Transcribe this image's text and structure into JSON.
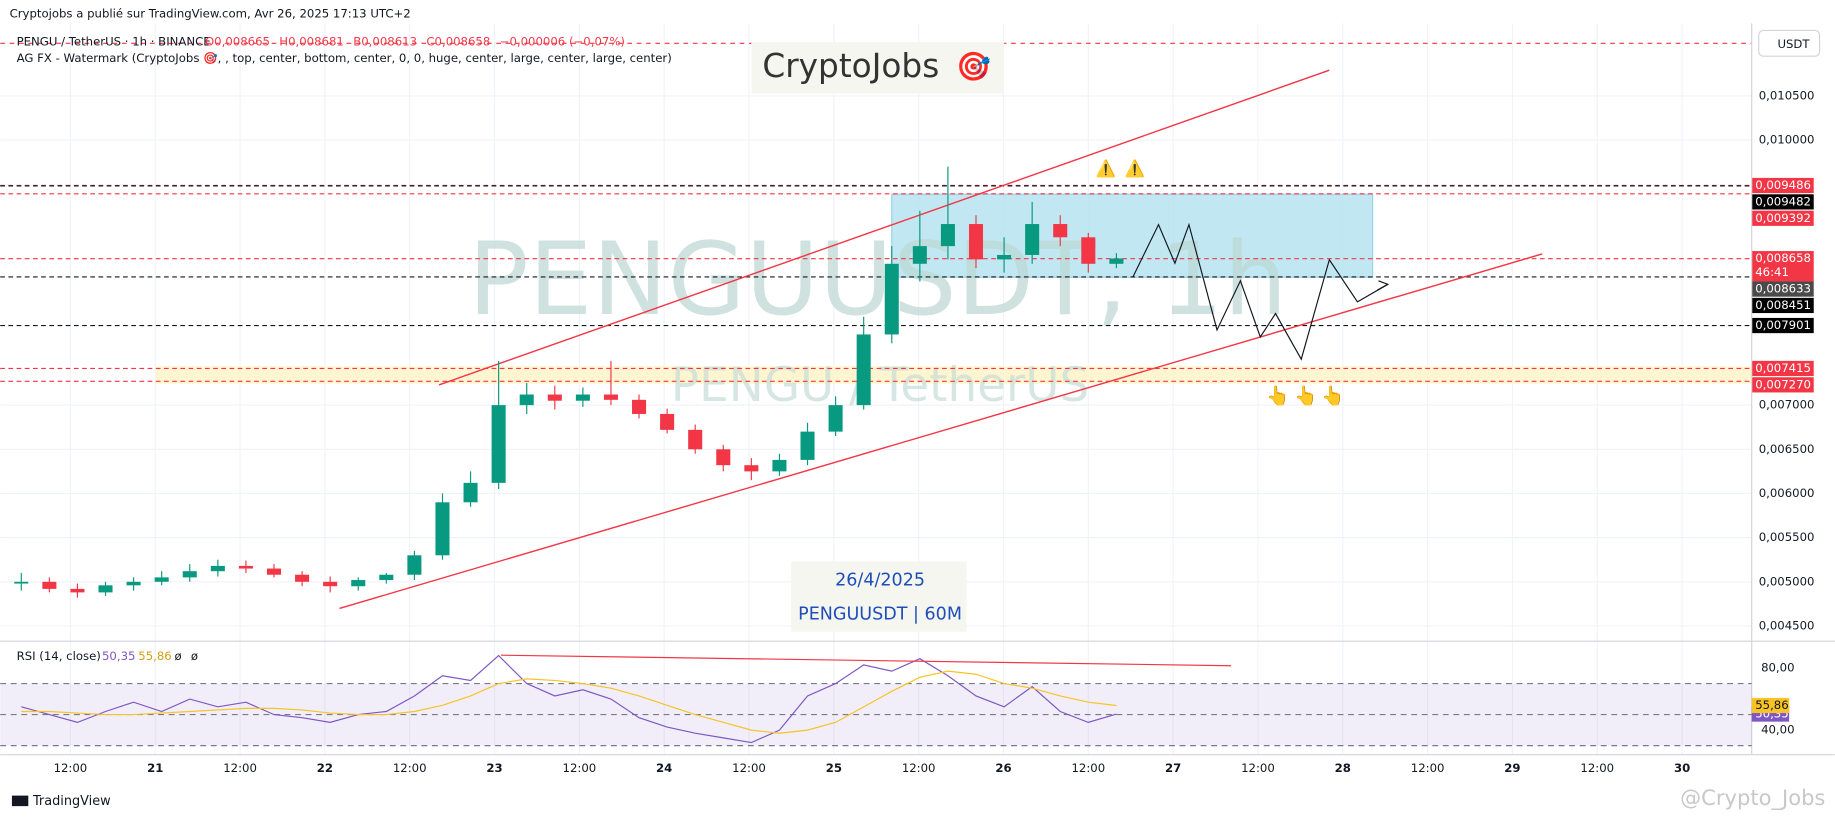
{
  "header": {
    "publisher": "Cryptojobs a publié sur TradingView.com, Avr 26, 2025 17:13 UTC+2",
    "symbol_line": "PENGU / TetherUS · 1h · BINANCE",
    "ohlc": [
      "O0,008665",
      "H0,008681",
      "B0,008613",
      "C0,008658",
      "−0,000006 (−0,07%)"
    ],
    "indicator_line": "AG FX - Watermark (CryptoJobs 🎯, , top, center, bottom, center, 0, 0, huge, center, large, center, large, center)",
    "currency": "USDT"
  },
  "logo": {
    "text": "CryptoJobs",
    "icon": "🎯"
  },
  "watermark": {
    "big": "PENGUUSDT, 1h",
    "small": "PENGU / TetherUS"
  },
  "date_box": {
    "date": "26/4/2025",
    "symbol": "PENGUUSDT | 60M"
  },
  "annotations": {
    "warnings": [
      "⚠️",
      "⚠️"
    ],
    "pointers": [
      "👆",
      "👆",
      "👆"
    ]
  },
  "time_labels": [
    "12:00",
    "21",
    "12:00",
    "22",
    "12:00",
    "23",
    "12:00",
    "24",
    "12:00",
    "25",
    "12:00",
    "26",
    "12:00",
    "27",
    "12:00",
    "28",
    "12:00",
    "29",
    "12:00",
    "30"
  ],
  "footer": {
    "brand": "TradingView",
    "credit": "@Crypto_Jobs"
  },
  "chart_data": [
    {
      "type": "candlestick",
      "up_color": "#089981",
      "down_color": "#f23645",
      "grid": true,
      "ylim": [
        0.004328,
        0.011255
      ],
      "yticks": [
        {
          "value": 0.0105,
          "label": "0,010500"
        },
        {
          "value": 0.01,
          "label": "0,010000"
        },
        {
          "value": 0.007,
          "label": "0,007000"
        },
        {
          "value": 0.0065,
          "label": "0,006500"
        },
        {
          "value": 0.006,
          "label": "0,006000"
        },
        {
          "value": 0.0055,
          "label": "0,005500"
        },
        {
          "value": 0.005,
          "label": "0,005000"
        },
        {
          "value": 0.0045,
          "label": "0,004500"
        }
      ],
      "open": [
        0.00498,
        0.005,
        0.00492,
        0.00488,
        0.00496,
        0.005,
        0.00505,
        0.00512,
        0.00518,
        0.00515,
        0.00508,
        0.005,
        0.00495,
        0.00502,
        0.00508,
        0.0053,
        0.0059,
        0.00612,
        0.007,
        0.00712,
        0.00705,
        0.00712,
        0.00706,
        0.0069,
        0.00672,
        0.0065,
        0.00632,
        0.00625,
        0.00638,
        0.0067,
        0.007,
        0.0078,
        0.0086,
        0.0088,
        0.00905,
        0.00865,
        0.0087,
        0.00905,
        0.0089,
        0.0086
      ],
      "high": [
        0.0051,
        0.00505,
        0.00498,
        0.005,
        0.00505,
        0.00512,
        0.0052,
        0.00525,
        0.00524,
        0.0052,
        0.00512,
        0.00506,
        0.00505,
        0.0051,
        0.00535,
        0.006,
        0.00625,
        0.0075,
        0.00725,
        0.00722,
        0.0072,
        0.0075,
        0.00712,
        0.00696,
        0.00678,
        0.00655,
        0.0064,
        0.00645,
        0.0068,
        0.0071,
        0.008,
        0.0088,
        0.0092,
        0.0097,
        0.00915,
        0.0089,
        0.0093,
        0.00915,
        0.00895,
        0.00872
      ],
      "low": [
        0.0049,
        0.00488,
        0.00482,
        0.00484,
        0.0049,
        0.00496,
        0.005,
        0.00506,
        0.0051,
        0.00505,
        0.00495,
        0.00488,
        0.0049,
        0.00498,
        0.00502,
        0.00525,
        0.00585,
        0.00605,
        0.0069,
        0.00695,
        0.00698,
        0.007,
        0.00685,
        0.00668,
        0.00645,
        0.00625,
        0.00615,
        0.0062,
        0.00632,
        0.00665,
        0.00695,
        0.0077,
        0.0084,
        0.00865,
        0.00855,
        0.0085,
        0.0086,
        0.0088,
        0.0085,
        0.00855
      ],
      "close": [
        0.005,
        0.00492,
        0.00488,
        0.00496,
        0.005,
        0.00505,
        0.00512,
        0.00518,
        0.00515,
        0.00508,
        0.005,
        0.00495,
        0.00502,
        0.00508,
        0.0053,
        0.0059,
        0.00612,
        0.007,
        0.00712,
        0.00705,
        0.00712,
        0.00706,
        0.0069,
        0.00672,
        0.0065,
        0.00632,
        0.00625,
        0.00638,
        0.0067,
        0.007,
        0.0078,
        0.0086,
        0.0088,
        0.00905,
        0.00865,
        0.0087,
        0.00905,
        0.0089,
        0.0086,
        0.00866
      ],
      "price_labels": [
        {
          "value": 0.009486,
          "label": "0,009486",
          "color": "#f23645"
        },
        {
          "value": 0.009482,
          "label": "0,009482",
          "color": "#000000"
        },
        {
          "value": 0.009392,
          "label": "0,009392",
          "color": "#f23645"
        },
        {
          "value": 0.008658,
          "label": "0,008658",
          "color": "#f23645",
          "sub": "46:41"
        },
        {
          "value": 0.008633,
          "label": "0,008633",
          "color": "#4a4a4a"
        },
        {
          "value": 0.008451,
          "label": "0,008451",
          "color": "#000000"
        },
        {
          "value": 0.007901,
          "label": "0,007901",
          "color": "#000000"
        },
        {
          "value": 0.007415,
          "label": "0,007415",
          "color": "#f23645"
        },
        {
          "value": 0.00727,
          "label": "0,007270",
          "color": "#f23645"
        }
      ]
    },
    {
      "type": "line",
      "title": "RSI (14, close)",
      "ylim": [
        24.2,
        95.8
      ],
      "levels": [
        70,
        50,
        30
      ],
      "yticks": [
        {
          "value": 80,
          "label": "80,00"
        },
        {
          "value": 40,
          "label": "40,00"
        }
      ],
      "extra_labels": [
        "ø",
        "ø"
      ],
      "series": [
        {
          "name": "RSI",
          "color": "#7e57c2",
          "values": [
            55,
            50,
            45,
            52,
            58,
            52,
            60,
            55,
            58,
            50,
            48,
            45,
            50,
            52,
            62,
            75,
            72,
            88,
            70,
            62,
            66,
            60,
            48,
            42,
            38,
            35,
            32,
            40,
            62,
            70,
            82,
            78,
            86,
            75,
            62,
            55,
            68,
            52,
            45,
            50.35
          ],
          "value_labels": [
            "50,35"
          ]
        },
        {
          "name": "RSI MA",
          "color": "#f7c325",
          "values": [
            52,
            52,
            51,
            50,
            50,
            51,
            52,
            53,
            54,
            54,
            53,
            51,
            50,
            50,
            52,
            56,
            62,
            70,
            73,
            72,
            70,
            67,
            62,
            56,
            50,
            45,
            40,
            38,
            40,
            45,
            55,
            65,
            74,
            78,
            76,
            70,
            67,
            62,
            58,
            55.86
          ],
          "value_labels": [
            "55,86"
          ]
        }
      ]
    }
  ]
}
